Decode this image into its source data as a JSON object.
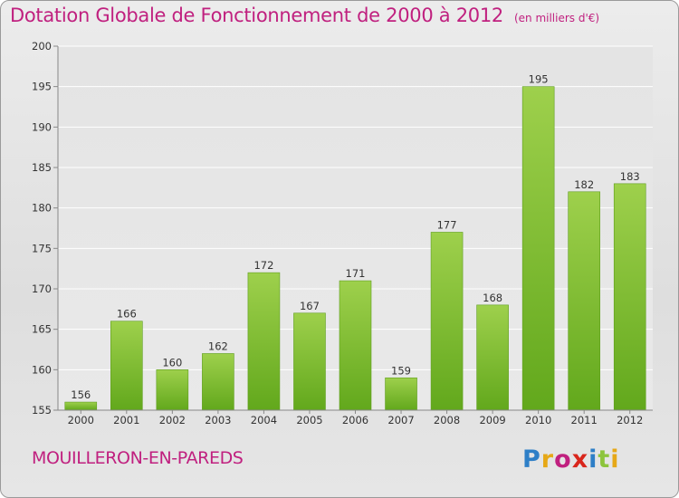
{
  "header": {
    "title": "Dotation Globale de Fonctionnement de 2000 à 2012",
    "unit_note": "(en milliers d'€)"
  },
  "footer": {
    "commune": "MOUILLERON-EN-PAREDS",
    "brand": "Proxiti",
    "brand_letter_colors": [
      "#2e7fc7",
      "#e6a817",
      "#c0207f",
      "#d9261c",
      "#2e7fc7",
      "#8cc43c",
      "#e6a817"
    ]
  },
  "colors": {
    "bar_light": "#9ed04c",
    "bar_dark": "#62a81c",
    "grid": "#ffffff",
    "text": "#333333",
    "accent": "#c0207f"
  },
  "chart_data": {
    "type": "bar",
    "categories": [
      "2000",
      "2001",
      "2002",
      "2003",
      "2004",
      "2005",
      "2006",
      "2007",
      "2008",
      "2009",
      "2010",
      "2011",
      "2012"
    ],
    "values": [
      156,
      166,
      160,
      162,
      172,
      167,
      171,
      159,
      177,
      168,
      195,
      182,
      183
    ],
    "title": "Dotation Globale de Fonctionnement de 2000 à 2012",
    "subtitle": "(en milliers d'€)",
    "xlabel": "",
    "ylabel": "",
    "ylim": [
      155,
      200
    ],
    "yticks": [
      155,
      160,
      165,
      170,
      175,
      180,
      185,
      190,
      195,
      200
    ],
    "grid": true,
    "data_labels": true
  }
}
